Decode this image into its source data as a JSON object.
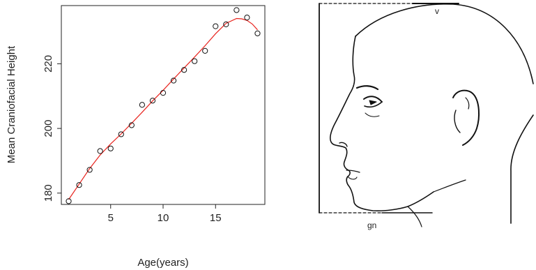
{
  "chart_data": {
    "type": "scatter",
    "xlabel": "Age(years)",
    "ylabel": "Mean Craniofacial Height",
    "xlim": [
      0.3,
      19.7
    ],
    "ylim": [
      176.5,
      238.0
    ],
    "x_ticks": [
      5,
      10,
      15
    ],
    "y_ticks": [
      180,
      200,
      220
    ],
    "grid": false,
    "legend": "none",
    "series": [
      {
        "marker": "open-circle",
        "x": [
          1,
          2,
          3,
          4,
          5,
          6,
          7,
          8,
          9,
          10,
          11,
          12,
          13,
          14,
          15,
          16,
          17,
          18,
          19
        ],
        "y": [
          177.5,
          182.5,
          187.2,
          193.0,
          193.8,
          198.2,
          201.0,
          207.3,
          208.6,
          211.0,
          214.8,
          218.1,
          220.8,
          224.0,
          231.6,
          232.2,
          236.6,
          234.3,
          229.4
        ]
      },
      {
        "type": "line",
        "color": "#e8221c",
        "x": [
          1,
          2,
          3,
          4,
          5,
          6,
          7,
          8,
          9,
          10,
          11,
          12,
          13,
          14,
          15,
          16,
          17,
          17.5,
          18,
          18.5,
          19
        ],
        "y": [
          178.0,
          182.8,
          187.6,
          191.8,
          195.2,
          198.3,
          201.6,
          205.0,
          208.5,
          211.8,
          215.3,
          218.7,
          222.1,
          225.6,
          229.3,
          232.5,
          234.0,
          233.9,
          233.4,
          232.3,
          230.5
        ]
      }
    ]
  },
  "diagram": {
    "labels": {
      "vertex": "v",
      "gnathion": "gn"
    }
  }
}
